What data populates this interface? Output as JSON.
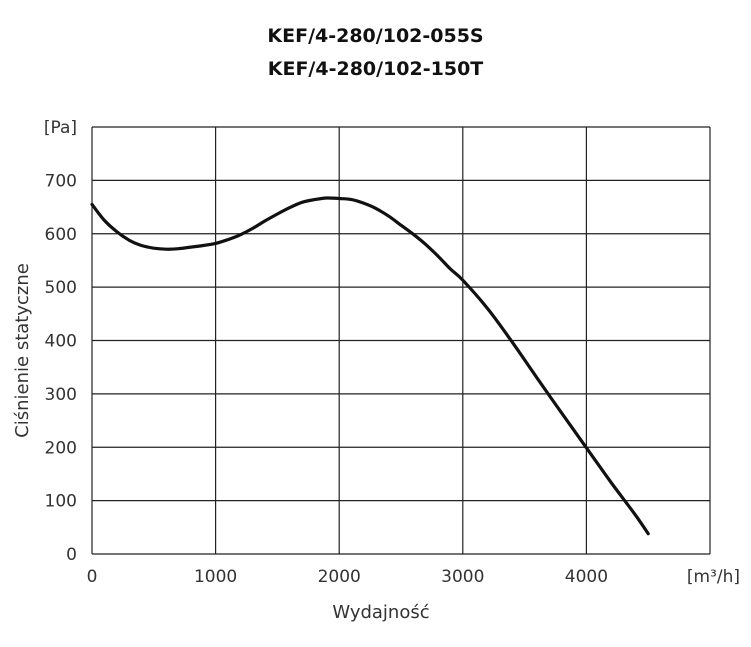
{
  "chart_data": {
    "type": "line",
    "title": "KEF/4-280/102-055S",
    "subtitle": "KEF/4-280/102-150T",
    "xlabel": "Wydajność",
    "ylabel": "Ciśnienie statyczne",
    "x_unit": "[m³/h]",
    "y_unit": "[Pa]",
    "xlim": [
      0,
      5000
    ],
    "ylim": [
      0,
      800
    ],
    "x_ticks": [
      "0",
      "1000",
      "2000",
      "3000",
      "4000"
    ],
    "y_ticks": [
      "0",
      "100",
      "200",
      "300",
      "400",
      "500",
      "600",
      "700"
    ],
    "grid": true,
    "series": [
      {
        "x": [
          0,
          100,
          200,
          300,
          400,
          500,
          600,
          700,
          800,
          900,
          1000,
          1100,
          1200,
          1300,
          1400,
          1500,
          1600,
          1700,
          1800,
          1900,
          2000,
          2100,
          2200,
          2300,
          2400,
          2500,
          2600,
          2700,
          2800,
          2900,
          3000,
          3200,
          3400,
          3600,
          3800,
          4000,
          4200,
          4400,
          4500
        ],
        "y": [
          655,
          625,
          604,
          588,
          578,
          573,
          571,
          572,
          575,
          578,
          582,
          589,
          598,
          610,
          624,
          637,
          649,
          659,
          664,
          667,
          666,
          664,
          657,
          647,
          633,
          616,
          599,
          580,
          558,
          534,
          513,
          460,
          397,
          330,
          264,
          199,
          134,
          72,
          38
        ]
      }
    ]
  }
}
